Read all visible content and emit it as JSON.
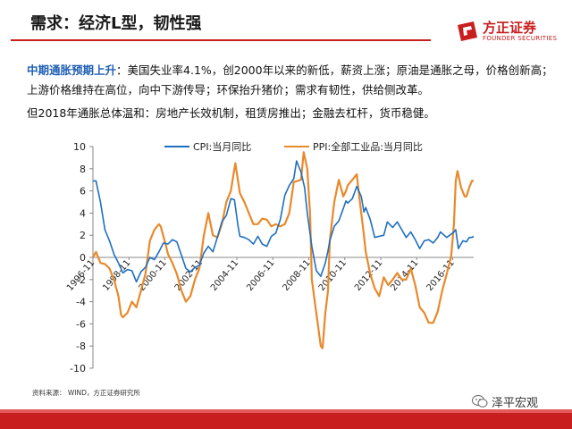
{
  "header": {
    "title": "需求：经济L型，韧性强",
    "logo_cn": "方正证券",
    "logo_en": "FOUNDER SECURITIES"
  },
  "body": {
    "highlight": "中期通胀预期上升",
    "para1_rest": "：美国失业率4.1%，创2000年以来的新低，薪资上涨；原油是通胀之母，价格创新高；上游价格维持在高位，向中下游传导；环保抬升猪价；需求有韧性，供给侧改革。",
    "para2": "但2018年通胀总体温和：房地产长效机制，租赁房推出；金融去杠杆，货币稳健。"
  },
  "source_note": "资料来源： WIND，方正证券研究所",
  "watermark": "泽平宏观",
  "colors": {
    "cpi": "#1f6fbf",
    "ppi": "#e8892b",
    "brand": "#c81e1e"
  },
  "chart_data": {
    "type": "line",
    "ylim": [
      -10,
      10
    ],
    "yticks": [
      -10,
      -8,
      -6,
      -4,
      -2,
      0,
      2,
      4,
      6,
      8,
      10
    ],
    "xlim": [
      1996.833,
      2018.0
    ],
    "xticks": [
      {
        "label": "1996-11",
        "x": 1996.833
      },
      {
        "label": "1998-11",
        "x": 1998.833
      },
      {
        "label": "2000-11",
        "x": 2000.833
      },
      {
        "label": "2002-11",
        "x": 2002.833
      },
      {
        "label": "2004-11",
        "x": 2004.833
      },
      {
        "label": "2006-11",
        "x": 2006.833
      },
      {
        "label": "2008-11",
        "x": 2008.833
      },
      {
        "label": "2010-11",
        "x": 2010.833
      },
      {
        "label": "2012-11",
        "x": 2012.833
      },
      {
        "label": "2014-11",
        "x": 2014.833
      },
      {
        "label": "2016-11",
        "x": 2016.833
      }
    ],
    "legend_position": "top",
    "series": [
      {
        "name": "CPI:当月同比",
        "points": [
          [
            1996.83,
            6.9
          ],
          [
            1997.0,
            6.9
          ],
          [
            1997.25,
            5.0
          ],
          [
            1997.5,
            2.5
          ],
          [
            1997.75,
            1.5
          ],
          [
            1998.0,
            0.3
          ],
          [
            1998.25,
            -0.5
          ],
          [
            1998.5,
            -1.4
          ],
          [
            1998.75,
            -1.1
          ],
          [
            1999.0,
            -1.2
          ],
          [
            1999.25,
            -2.2
          ],
          [
            1999.5,
            -1.3
          ],
          [
            1999.75,
            -0.9
          ],
          [
            2000.0,
            0.0
          ],
          [
            2000.25,
            -0.2
          ],
          [
            2000.5,
            0.5
          ],
          [
            2000.75,
            1.3
          ],
          [
            2001.0,
            1.2
          ],
          [
            2001.25,
            1.6
          ],
          [
            2001.5,
            1.4
          ],
          [
            2001.75,
            0.2
          ],
          [
            2002.0,
            -1.0
          ],
          [
            2002.25,
            -1.3
          ],
          [
            2002.5,
            -0.9
          ],
          [
            2002.75,
            -0.7
          ],
          [
            2003.0,
            0.4
          ],
          [
            2003.25,
            1.0
          ],
          [
            2003.5,
            0.5
          ],
          [
            2003.75,
            1.8
          ],
          [
            2004.0,
            3.2
          ],
          [
            2004.25,
            3.8
          ],
          [
            2004.5,
            5.3
          ],
          [
            2004.7,
            5.2
          ],
          [
            2004.9,
            2.8
          ],
          [
            2005.0,
            1.9
          ],
          [
            2005.25,
            1.8
          ],
          [
            2005.5,
            1.6
          ],
          [
            2005.75,
            1.2
          ],
          [
            2006.0,
            1.9
          ],
          [
            2006.25,
            1.2
          ],
          [
            2006.5,
            1.0
          ],
          [
            2006.75,
            1.9
          ],
          [
            2007.0,
            2.2
          ],
          [
            2007.25,
            3.4
          ],
          [
            2007.5,
            5.6
          ],
          [
            2007.75,
            6.5
          ],
          [
            2008.0,
            7.1
          ],
          [
            2008.15,
            8.7
          ],
          [
            2008.4,
            7.7
          ],
          [
            2008.6,
            6.3
          ],
          [
            2008.75,
            4.0
          ],
          [
            2009.0,
            1.0
          ],
          [
            2009.25,
            -1.2
          ],
          [
            2009.5,
            -1.7
          ],
          [
            2009.75,
            -0.5
          ],
          [
            2009.9,
            0.6
          ],
          [
            2010.0,
            1.5
          ],
          [
            2010.25,
            2.8
          ],
          [
            2010.5,
            3.3
          ],
          [
            2010.75,
            4.4
          ],
          [
            2010.9,
            5.1
          ],
          [
            2011.0,
            4.9
          ],
          [
            2011.25,
            5.3
          ],
          [
            2011.5,
            6.4
          ],
          [
            2011.75,
            5.5
          ],
          [
            2011.9,
            4.1
          ],
          [
            2012.0,
            4.5
          ],
          [
            2012.25,
            3.4
          ],
          [
            2012.5,
            1.8
          ],
          [
            2012.75,
            1.9
          ],
          [
            2013.0,
            2.0
          ],
          [
            2013.2,
            3.2
          ],
          [
            2013.5,
            2.7
          ],
          [
            2013.75,
            3.2
          ],
          [
            2014.0,
            2.5
          ],
          [
            2014.25,
            1.8
          ],
          [
            2014.5,
            2.3
          ],
          [
            2014.75,
            1.6
          ],
          [
            2015.0,
            0.8
          ],
          [
            2015.25,
            1.5
          ],
          [
            2015.5,
            1.6
          ],
          [
            2015.75,
            1.3
          ],
          [
            2016.0,
            1.8
          ],
          [
            2016.15,
            2.3
          ],
          [
            2016.5,
            1.8
          ],
          [
            2016.75,
            2.1
          ],
          [
            2016.9,
            2.3
          ],
          [
            2017.0,
            2.5
          ],
          [
            2017.15,
            0.8
          ],
          [
            2017.4,
            1.5
          ],
          [
            2017.6,
            1.4
          ],
          [
            2017.75,
            1.8
          ],
          [
            2017.9,
            1.8
          ],
          [
            2018.0,
            1.9
          ]
        ]
      },
      {
        "name": "PPI:全部工业品:当月同比",
        "points": [
          [
            1996.83,
            0.0
          ],
          [
            1997.0,
            0.5
          ],
          [
            1997.25,
            -0.5
          ],
          [
            1997.5,
            -0.6
          ],
          [
            1997.75,
            -1.0
          ],
          [
            1998.0,
            -2.0
          ],
          [
            1998.25,
            -3.5
          ],
          [
            1998.4,
            -5.2
          ],
          [
            1998.5,
            -5.4
          ],
          [
            1998.75,
            -5.0
          ],
          [
            1999.0,
            -4.0
          ],
          [
            1999.25,
            -4.5
          ],
          [
            1999.5,
            -3.0
          ],
          [
            1999.75,
            -1.5
          ],
          [
            2000.0,
            1.5
          ],
          [
            2000.25,
            2.5
          ],
          [
            2000.5,
            3.0
          ],
          [
            2000.6,
            2.8
          ],
          [
            2000.9,
            1.0
          ],
          [
            2001.0,
            0.3
          ],
          [
            2001.25,
            -0.5
          ],
          [
            2001.5,
            -1.5
          ],
          [
            2001.75,
            -3.0
          ],
          [
            2002.0,
            -4.0
          ],
          [
            2002.25,
            -3.5
          ],
          [
            2002.5,
            -2.0
          ],
          [
            2002.75,
            -1.0
          ],
          [
            2003.0,
            2.0
          ],
          [
            2003.25,
            4.0
          ],
          [
            2003.5,
            2.0
          ],
          [
            2003.75,
            1.8
          ],
          [
            2004.0,
            3.0
          ],
          [
            2004.25,
            5.0
          ],
          [
            2004.5,
            6.0
          ],
          [
            2004.75,
            8.5
          ],
          [
            2005.0,
            5.8
          ],
          [
            2005.25,
            5.0
          ],
          [
            2005.5,
            4.0
          ],
          [
            2005.75,
            3.0
          ],
          [
            2006.0,
            3.0
          ],
          [
            2006.25,
            3.5
          ],
          [
            2006.5,
            3.4
          ],
          [
            2006.75,
            2.8
          ],
          [
            2007.0,
            3.0
          ],
          [
            2007.25,
            2.8
          ],
          [
            2007.5,
            3.0
          ],
          [
            2007.75,
            4.0
          ],
          [
            2008.0,
            6.8
          ],
          [
            2008.4,
            7.0
          ],
          [
            2008.55,
            9.5
          ],
          [
            2008.75,
            8.0
          ],
          [
            2008.9,
            4.0
          ],
          [
            2009.0,
            -2.0
          ],
          [
            2009.25,
            -5.0
          ],
          [
            2009.5,
            -8.0
          ],
          [
            2009.6,
            -8.2
          ],
          [
            2009.75,
            -5.0
          ],
          [
            2009.9,
            -3.0
          ],
          [
            2010.0,
            1.5
          ],
          [
            2010.25,
            5.0
          ],
          [
            2010.5,
            7.0
          ],
          [
            2010.75,
            5.5
          ],
          [
            2010.9,
            6.0
          ],
          [
            2011.0,
            6.5
          ],
          [
            2011.25,
            7.0
          ],
          [
            2011.5,
            7.5
          ],
          [
            2011.6,
            6.0
          ],
          [
            2011.9,
            2.0
          ],
          [
            2012.0,
            0.5
          ],
          [
            2012.25,
            -1.5
          ],
          [
            2012.5,
            -2.8
          ],
          [
            2012.75,
            -3.5
          ],
          [
            2013.0,
            -1.8
          ],
          [
            2013.25,
            -2.5
          ],
          [
            2013.5,
            -2.0
          ],
          [
            2013.75,
            -1.4
          ],
          [
            2014.0,
            -2.0
          ],
          [
            2014.25,
            -2.0
          ],
          [
            2014.5,
            -1.0
          ],
          [
            2014.75,
            -2.5
          ],
          [
            2015.0,
            -4.5
          ],
          [
            2015.25,
            -5.0
          ],
          [
            2015.5,
            -5.9
          ],
          [
            2015.75,
            -5.9
          ],
          [
            2016.0,
            -4.9
          ],
          [
            2016.25,
            -3.0
          ],
          [
            2016.5,
            -1.5
          ],
          [
            2016.75,
            0.1
          ],
          [
            2016.9,
            3.0
          ],
          [
            2017.0,
            6.9
          ],
          [
            2017.1,
            7.8
          ],
          [
            2017.3,
            6.3
          ],
          [
            2017.5,
            5.5
          ],
          [
            2017.6,
            5.5
          ],
          [
            2017.75,
            6.3
          ],
          [
            2017.9,
            6.9
          ],
          [
            2018.0,
            6.9
          ]
        ]
      }
    ]
  }
}
